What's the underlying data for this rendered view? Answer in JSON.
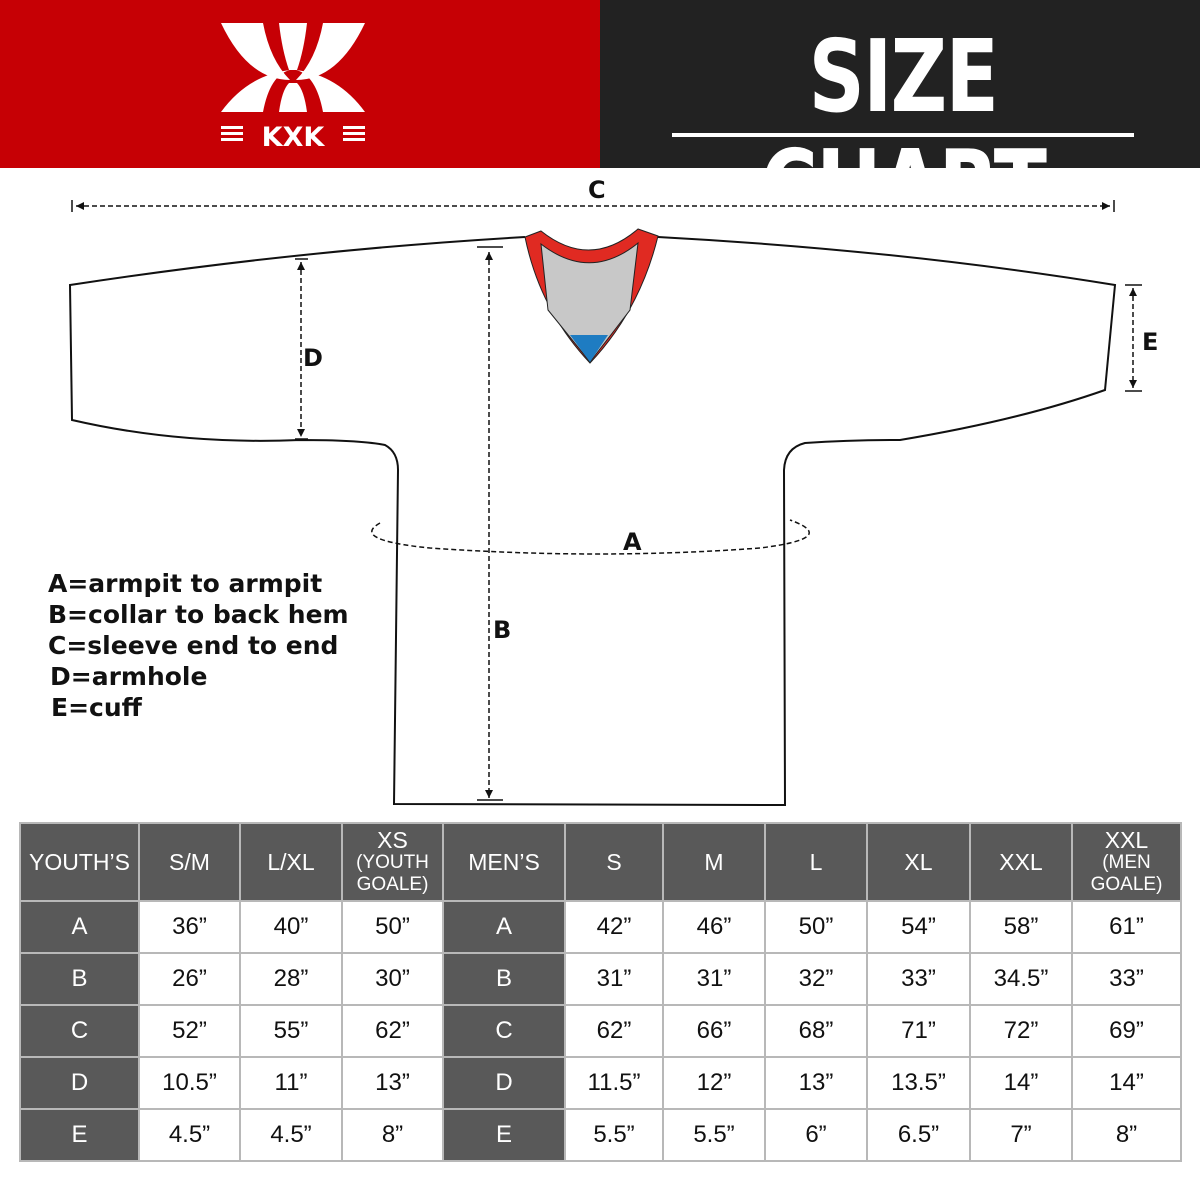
{
  "brand": {
    "logo_text": "KXK",
    "primary_color": "#c60005",
    "dark_color": "#222222"
  },
  "header": {
    "title": "SIZE CHART"
  },
  "diagram": {
    "labels": {
      "a": "A",
      "b": "B",
      "c": "C",
      "d": "D",
      "e": "E"
    },
    "legend": [
      "A=armpit to armpit",
      "B=collar to back hem",
      "C=sleeve end to end",
      "D=armhole",
      "E=cuff"
    ]
  },
  "table": {
    "youth_header": "YOUTH’S",
    "men_header": "MEN’S",
    "youth_sizes": [
      {
        "main": "S/M",
        "sub": ""
      },
      {
        "main": "L/XL",
        "sub": ""
      },
      {
        "main": "XS",
        "sub": "(YOUTH GOALE)"
      }
    ],
    "men_sizes": [
      {
        "main": "S",
        "sub": ""
      },
      {
        "main": "M",
        "sub": ""
      },
      {
        "main": "L",
        "sub": ""
      },
      {
        "main": "XL",
        "sub": ""
      },
      {
        "main": "XXL",
        "sub": ""
      },
      {
        "main": "XXL",
        "sub": "(MEN GOALE)"
      }
    ],
    "rows": [
      {
        "label": "A",
        "youth": [
          "36”",
          "40”",
          "50”"
        ],
        "men": [
          "42”",
          "46”",
          "50”",
          "54”",
          "58”",
          "61”"
        ]
      },
      {
        "label": "B",
        "youth": [
          "26”",
          "28”",
          "30”"
        ],
        "men": [
          "31”",
          "31”",
          "32”",
          "33”",
          "34.5”",
          "33”"
        ]
      },
      {
        "label": "C",
        "youth": [
          "52”",
          "55”",
          "62”"
        ],
        "men": [
          "62”",
          "66”",
          "68”",
          "71”",
          "72”",
          "69”"
        ]
      },
      {
        "label": "D",
        "youth": [
          "10.5”",
          "11”",
          "13”"
        ],
        "men": [
          "11.5”",
          "12”",
          "13”",
          "13.5”",
          "14”",
          "14”"
        ]
      },
      {
        "label": "E",
        "youth": [
          "4.5”",
          "4.5”",
          "8”"
        ],
        "men": [
          "5.5”",
          "5.5”",
          "6”",
          "6.5”",
          "7”",
          "8”"
        ]
      }
    ]
  }
}
